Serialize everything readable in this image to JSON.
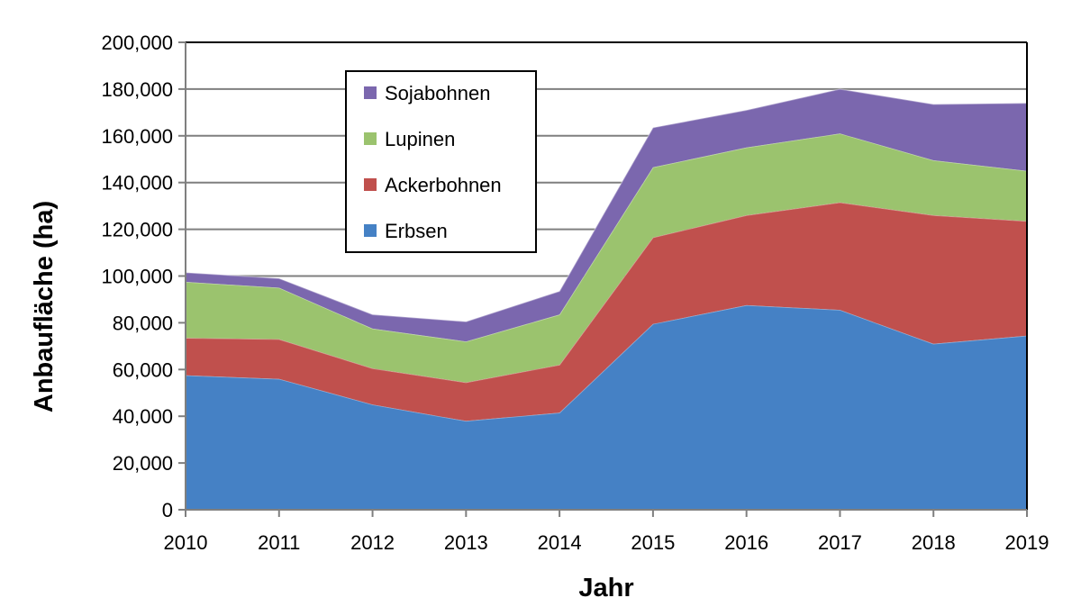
{
  "chart_data": {
    "type": "area",
    "stacked": true,
    "title": "",
    "xlabel": "Jahr",
    "ylabel": "Anbaufläche (ha)",
    "x": [
      "2010",
      "2011",
      "2012",
      "2013",
      "2014",
      "2015",
      "2016",
      "2017",
      "2018",
      "2019"
    ],
    "ylim": [
      0,
      200000
    ],
    "yticks": [
      0,
      20000,
      40000,
      60000,
      80000,
      100000,
      120000,
      140000,
      160000,
      180000,
      200000
    ],
    "ytick_labels": [
      "0",
      "20,000",
      "40,000",
      "60,000",
      "80,000",
      "100,000",
      "120,000",
      "140,000",
      "160,000",
      "180,000",
      "200,000"
    ],
    "grid": true,
    "legend_position": "top-left (inside plot, upper left area)",
    "series": [
      {
        "name": "Erbsen",
        "color": "#4581C5",
        "values": [
          57500,
          56000,
          45000,
          38000,
          41500,
          79500,
          87500,
          85500,
          71000,
          74500
        ]
      },
      {
        "name": "Ackerbohnen",
        "color": "#C0504D",
        "values": [
          16000,
          17000,
          15500,
          16500,
          20500,
          37000,
          38500,
          46000,
          55000,
          49000
        ]
      },
      {
        "name": "Lupinen",
        "color": "#9BC36E",
        "values": [
          24000,
          22000,
          17000,
          17500,
          21500,
          30000,
          29000,
          29500,
          23500,
          21500
        ]
      },
      {
        "name": "Sojabohnen",
        "color": "#7B67AE",
        "values": [
          4000,
          4000,
          6000,
          8500,
          10000,
          17000,
          16000,
          19000,
          24000,
          29000
        ]
      }
    ],
    "legend_order": [
      "Sojabohnen",
      "Lupinen",
      "Ackerbohnen",
      "Erbsen"
    ]
  }
}
